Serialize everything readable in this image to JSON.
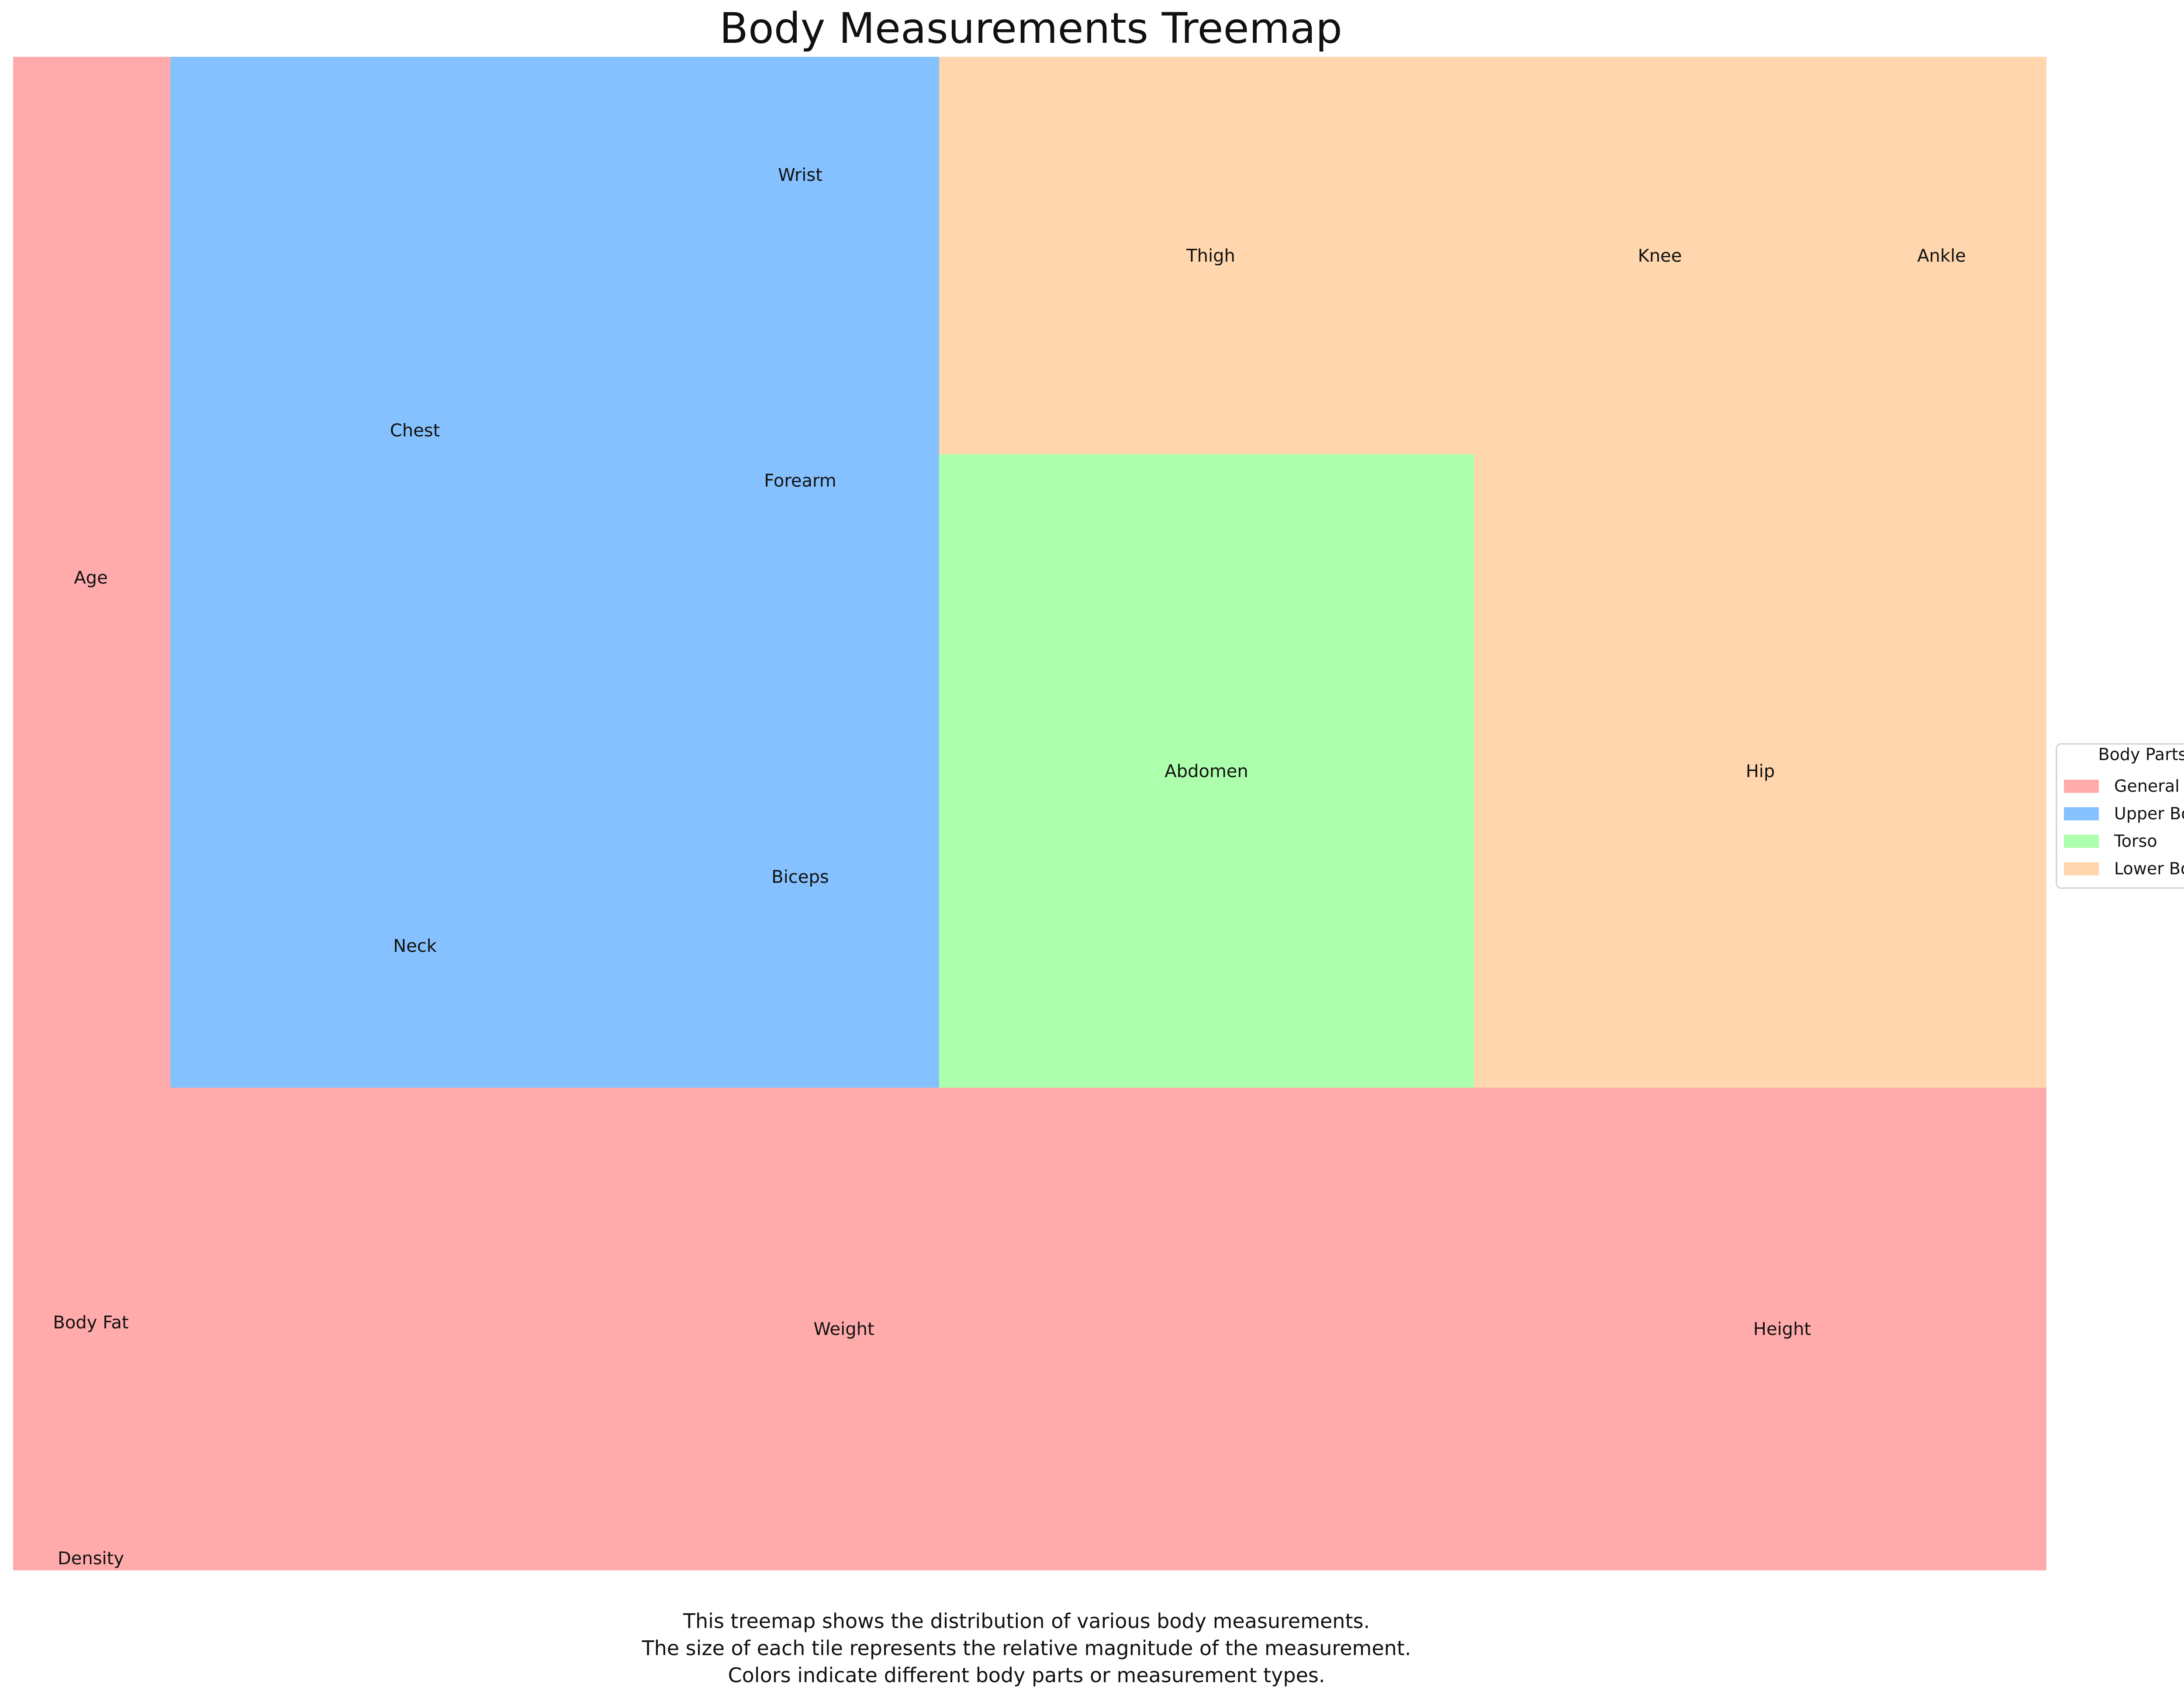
{
  "chart_data": {
    "type": "treemap",
    "title": "Body Measurements Treemap",
    "legend": {
      "title": "Body Parts",
      "placement": "right",
      "entries": [
        {
          "name": "General",
          "color": "#FFABAB"
        },
        {
          "name": "Upper Body",
          "color": "#85C1FF"
        },
        {
          "name": "Torso",
          "color": "#ACFFAC"
        },
        {
          "name": "Lower Body",
          "color": "#FFD6AE"
        }
      ]
    },
    "tiles": [
      {
        "label": "Age",
        "group": "General"
      },
      {
        "label": "Body Fat",
        "group": "General"
      },
      {
        "label": "Density",
        "group": "General"
      },
      {
        "label": "Weight",
        "group": "General"
      },
      {
        "label": "Height",
        "group": "General"
      },
      {
        "label": "Chest",
        "group": "Upper Body"
      },
      {
        "label": "Neck",
        "group": "Upper Body"
      },
      {
        "label": "Wrist",
        "group": "Upper Body"
      },
      {
        "label": "Forearm",
        "group": "Upper Body"
      },
      {
        "label": "Biceps",
        "group": "Upper Body"
      },
      {
        "label": "Abdomen",
        "group": "Torso"
      },
      {
        "label": "Thigh",
        "group": "Lower Body"
      },
      {
        "label": "Knee",
        "group": "Lower Body"
      },
      {
        "label": "Ankle",
        "group": "Lower Body"
      },
      {
        "label": "Hip",
        "group": "Lower Body"
      }
    ]
  },
  "caption": [
    "This treemap shows the distribution of various body measurements.",
    "The size of each tile represents the relative magnitude of the measurement.",
    "Colors indicate different body parts or measurement types."
  ]
}
